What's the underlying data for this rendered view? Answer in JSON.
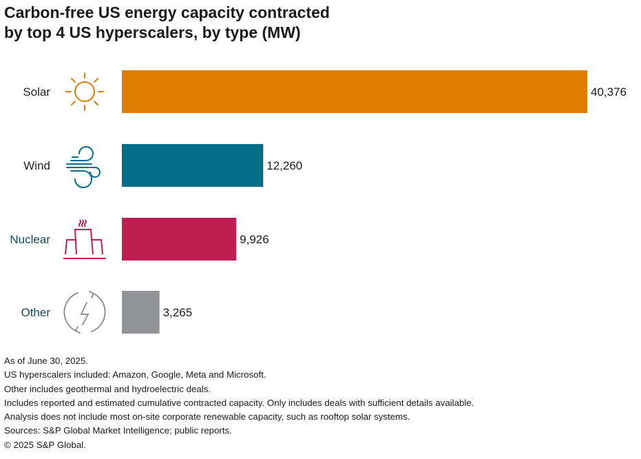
{
  "chart_data": {
    "type": "bar",
    "orientation": "horizontal",
    "title": "Carbon-free US energy capacity contracted by top 4 US hyperscalers, by type (MW)",
    "title_lines": [
      "Carbon-free US energy capacity contracted",
      "by top 4 US hyperscalers, by type (MW)"
    ],
    "categories": [
      "Solar",
      "Wind",
      "Nuclear",
      "Other"
    ],
    "values": [
      40376,
      12260,
      9926,
      3265
    ],
    "data_labels": [
      "40,376",
      "12,260",
      "9,926",
      "3,265"
    ],
    "colors": [
      "#e07c00",
      "#006d89",
      "#bf1e53",
      "#929397"
    ],
    "label_colors": [
      "#222222",
      "#222222",
      "#124a5c",
      "#124a5c"
    ],
    "icons": [
      "sun-icon",
      "wind-icon",
      "factory-icon",
      "renewable-energy-icon"
    ],
    "xlim": [
      0,
      40376
    ],
    "grid": false,
    "legend": "none"
  },
  "notes": [
    "As of June 30, 2025.",
    "US hyperscalers included: Amazon, Google, Meta and Microsoft.",
    "Other includes geothermal and hydroelectric deals.",
    "Includes reported and estimated cumulative contracted capacity. Only includes deals with sufficient details available.",
    "Analysis does not include most on-site corporate renewable capacity, such as rooftop solar systems.",
    "Sources: S&P Global Market Intelligence; public reports.",
    "© 2025 S&P Global."
  ]
}
